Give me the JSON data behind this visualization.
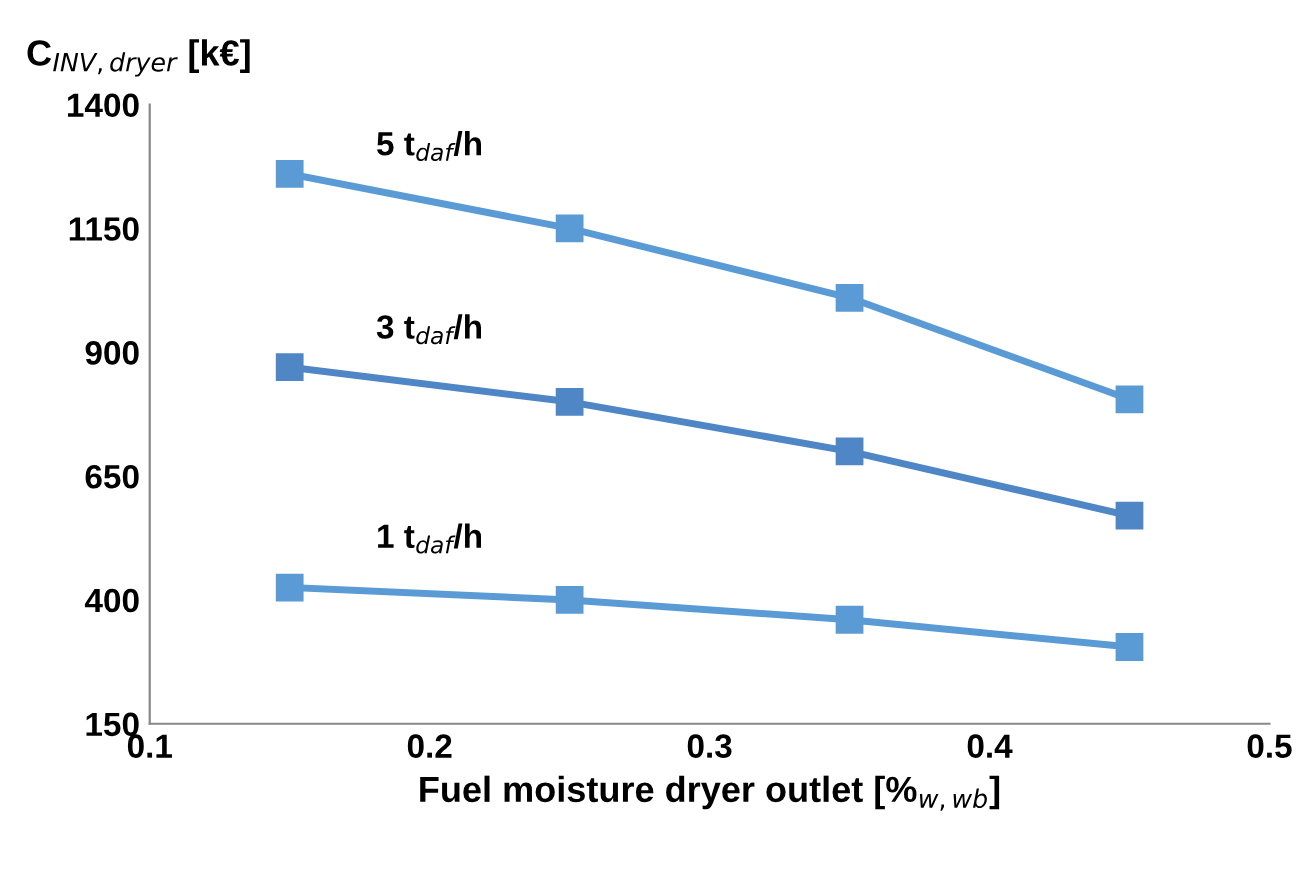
{
  "chart_data": {
    "type": "line",
    "xlabel": "Fuel moisture dryer outlet [%$_{w,wb}$]",
    "ylabel": "C$_{INV,dryer}$ [k€]",
    "x": [
      0.15,
      0.25,
      0.35,
      0.45
    ],
    "series": [
      {
        "name": "5 t$_{daf}$/h",
        "color": "#5b9bd5",
        "values": [
          1260,
          1150,
          1010,
          805
        ]
      },
      {
        "name": "3 t$_{daf}$/h",
        "color": "#4f86c6",
        "values": [
          870,
          800,
          700,
          570
        ]
      },
      {
        "name": "1 t$_{daf}$/h",
        "color": "#5b9bd5",
        "values": [
          425,
          400,
          360,
          305
        ]
      }
    ],
    "xlim": [
      0.1,
      0.5
    ],
    "xticks": [
      0.1,
      0.2,
      0.3,
      0.4,
      0.5
    ],
    "ylim": [
      150,
      1400
    ],
    "yticks": [
      150,
      400,
      650,
      900,
      1150,
      1400
    ],
    "marker": "square",
    "line_style": "solid",
    "grid": false,
    "legend": false
  }
}
